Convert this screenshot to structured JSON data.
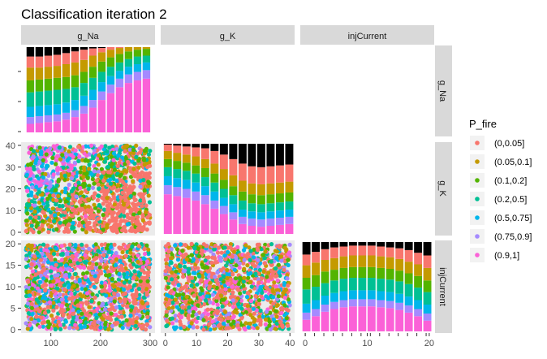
{
  "chart_data": {
    "type": "scatter",
    "title": "Classification iteration 2",
    "facets": [
      "g_Na",
      "g_K",
      "injCurrent"
    ],
    "legend": {
      "title": "P_fire",
      "placement": "right",
      "categories": [
        "(0,0.05]",
        "(0.05,0.1]",
        "(0.1,0.2]",
        "(0.2,0.5]",
        "(0.5,0.75]",
        "(0.75,0.9]",
        "(0.9,1]"
      ],
      "colors": [
        "#F8766D",
        "#C49A00",
        "#53B400",
        "#00C094",
        "#00B6EB",
        "#A58AFF",
        "#FB61D7"
      ]
    },
    "axes": {
      "g_Na": {
        "range": [
          50,
          300
        ],
        "ticks": [
          100,
          200,
          300
        ]
      },
      "g_K": {
        "range": [
          0,
          40
        ],
        "ticks": [
          0,
          10,
          20,
          30,
          40
        ]
      },
      "injCurrent": {
        "range": [
          0,
          20
        ],
        "ticks": [
          0,
          5,
          10,
          15,
          20
        ]
      }
    },
    "panels": {
      "g_Na_density": {
        "x_bins": [
          60,
          78,
          96,
          114,
          132,
          150,
          168,
          186,
          204,
          222,
          240,
          258,
          276,
          294
        ],
        "cumulative_proportions": [
          [
            0.1,
            0.18,
            0.3,
            0.47,
            0.61,
            0.76,
            0.89
          ],
          [
            0.11,
            0.19,
            0.31,
            0.48,
            0.62,
            0.76,
            0.89
          ],
          [
            0.12,
            0.2,
            0.32,
            0.49,
            0.63,
            0.77,
            0.9
          ],
          [
            0.13,
            0.21,
            0.33,
            0.5,
            0.64,
            0.78,
            0.91
          ],
          [
            0.15,
            0.23,
            0.35,
            0.51,
            0.65,
            0.8,
            0.93
          ],
          [
            0.18,
            0.26,
            0.38,
            0.53,
            0.67,
            0.82,
            0.95
          ],
          [
            0.22,
            0.31,
            0.43,
            0.58,
            0.71,
            0.85,
            0.97
          ],
          [
            0.29,
            0.38,
            0.5,
            0.64,
            0.77,
            0.9,
            0.985
          ],
          [
            0.38,
            0.48,
            0.59,
            0.71,
            0.83,
            0.94,
            0.99
          ],
          [
            0.46,
            0.56,
            0.66,
            0.77,
            0.88,
            0.97,
            1.0
          ],
          [
            0.53,
            0.63,
            0.72,
            0.82,
            0.92,
            0.99,
            1.0
          ],
          [
            0.58,
            0.68,
            0.77,
            0.86,
            0.95,
            1.0,
            1.0
          ],
          [
            0.61,
            0.71,
            0.8,
            0.89,
            0.97,
            1.0,
            1.0
          ],
          [
            0.63,
            0.73,
            0.82,
            0.9,
            0.98,
            1.0,
            1.0
          ]
        ]
      },
      "g_K_density": {
        "x_bins": [
          1,
          4,
          7,
          10,
          13,
          16,
          19,
          22,
          25,
          28,
          31,
          34,
          37,
          40
        ],
        "cumulative_proportions": [
          [
            0.44,
            0.54,
            0.64,
            0.74,
            0.83,
            0.92,
            0.99
          ],
          [
            0.42,
            0.52,
            0.62,
            0.72,
            0.81,
            0.9,
            0.98
          ],
          [
            0.4,
            0.5,
            0.6,
            0.7,
            0.79,
            0.88,
            0.97
          ],
          [
            0.37,
            0.47,
            0.57,
            0.67,
            0.76,
            0.86,
            0.96
          ],
          [
            0.33,
            0.43,
            0.53,
            0.63,
            0.73,
            0.83,
            0.95
          ],
          [
            0.28,
            0.37,
            0.47,
            0.57,
            0.67,
            0.78,
            0.92
          ],
          [
            0.22,
            0.31,
            0.4,
            0.5,
            0.6,
            0.72,
            0.88
          ],
          [
            0.16,
            0.24,
            0.33,
            0.43,
            0.53,
            0.65,
            0.83
          ],
          [
            0.11,
            0.19,
            0.27,
            0.37,
            0.47,
            0.59,
            0.78
          ],
          [
            0.09,
            0.17,
            0.25,
            0.34,
            0.44,
            0.56,
            0.75
          ],
          [
            0.08,
            0.16,
            0.24,
            0.33,
            0.43,
            0.55,
            0.74
          ],
          [
            0.09,
            0.17,
            0.25,
            0.34,
            0.44,
            0.56,
            0.75
          ],
          [
            0.1,
            0.18,
            0.26,
            0.35,
            0.45,
            0.57,
            0.76
          ],
          [
            0.11,
            0.19,
            0.27,
            0.36,
            0.46,
            0.58,
            0.77
          ]
        ]
      },
      "injCurrent_density": {
        "x_bins": [
          0.3,
          1.8,
          3.3,
          4.8,
          6.3,
          7.8,
          9.3,
          10.8,
          12.3,
          13.8,
          15.3,
          16.8,
          18.3,
          19.8
        ],
        "cumulative_proportions": [
          [
            0.13,
            0.21,
            0.31,
            0.47,
            0.6,
            0.74,
            0.86
          ],
          [
            0.17,
            0.25,
            0.35,
            0.5,
            0.63,
            0.77,
            0.89
          ],
          [
            0.22,
            0.3,
            0.4,
            0.54,
            0.67,
            0.8,
            0.92
          ],
          [
            0.25,
            0.33,
            0.43,
            0.57,
            0.69,
            0.82,
            0.94
          ],
          [
            0.27,
            0.35,
            0.45,
            0.59,
            0.71,
            0.84,
            0.95
          ],
          [
            0.28,
            0.36,
            0.46,
            0.6,
            0.72,
            0.85,
            0.96
          ],
          [
            0.28,
            0.36,
            0.46,
            0.6,
            0.72,
            0.85,
            0.96
          ],
          [
            0.28,
            0.36,
            0.46,
            0.6,
            0.72,
            0.85,
            0.96
          ],
          [
            0.27,
            0.35,
            0.45,
            0.59,
            0.71,
            0.84,
            0.95
          ],
          [
            0.26,
            0.34,
            0.44,
            0.58,
            0.7,
            0.83,
            0.94
          ],
          [
            0.24,
            0.32,
            0.42,
            0.56,
            0.68,
            0.81,
            0.93
          ],
          [
            0.21,
            0.29,
            0.39,
            0.53,
            0.65,
            0.78,
            0.91
          ],
          [
            0.17,
            0.25,
            0.35,
            0.49,
            0.62,
            0.75,
            0.88
          ],
          [
            0.12,
            0.2,
            0.3,
            0.44,
            0.57,
            0.71,
            0.85
          ]
        ]
      },
      "g_K_vs_g_Na_scatter": {
        "n_points": 1400,
        "pattern": "low P_fire (red) where g_K is high and g_Na low; high P_fire (pink/purple) where g_Na high and g_K low; diagonal band separating them"
      },
      "injCurrent_vs_g_Na_scatter": {
        "n_points": 1500,
        "pattern": "mixed classes throughout"
      },
      "injCurrent_vs_g_K_scatter": {
        "n_points": 1300,
        "pattern": "mixed classes, mostly red/orange"
      }
    }
  }
}
